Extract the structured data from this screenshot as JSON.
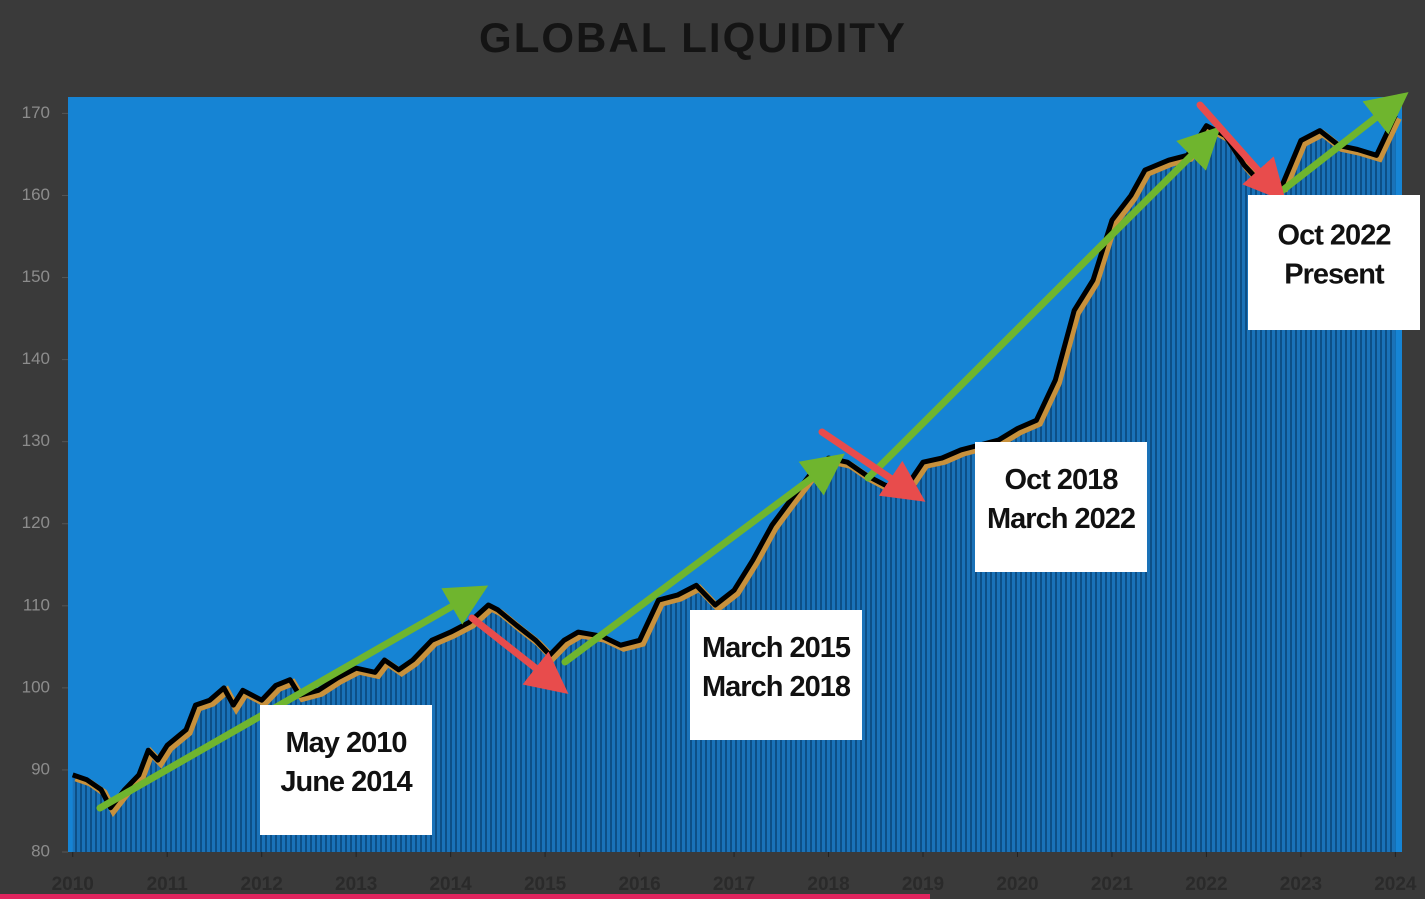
{
  "chart_data": {
    "type": "area_line",
    "title": "GLOBAL LIQUIDITY",
    "x": [
      2010.0,
      2010.15,
      2010.3,
      2010.4,
      2010.55,
      2010.7,
      2010.8,
      2010.9,
      2011.0,
      2011.2,
      2011.3,
      2011.45,
      2011.6,
      2011.7,
      2011.8,
      2012.0,
      2012.15,
      2012.3,
      2012.4,
      2012.6,
      2012.8,
      2013.0,
      2013.2,
      2013.3,
      2013.45,
      2013.6,
      2013.8,
      2014.0,
      2014.2,
      2014.4,
      2014.5,
      2014.7,
      2014.9,
      2015.05,
      2015.2,
      2015.35,
      2015.6,
      2015.8,
      2016.0,
      2016.2,
      2016.4,
      2016.6,
      2016.8,
      2017.0,
      2017.2,
      2017.4,
      2017.6,
      2017.8,
      2018.0,
      2018.2,
      2018.4,
      2018.6,
      2018.8,
      2019.0,
      2019.2,
      2019.4,
      2019.6,
      2019.8,
      2020.0,
      2020.2,
      2020.4,
      2020.6,
      2020.8,
      2021.0,
      2021.2,
      2021.35,
      2021.6,
      2021.8,
      2022.0,
      2022.2,
      2022.4,
      2022.6,
      2022.8,
      2023.0,
      2023.2,
      2023.4,
      2023.6,
      2023.8,
      2024.0
    ],
    "values": [
      89.4,
      88.8,
      87.6,
      85.4,
      87.6,
      89.4,
      92.4,
      91.2,
      93,
      94.9,
      97.9,
      98.5,
      100,
      97.9,
      99.7,
      98.5,
      100.3,
      101,
      99.1,
      99.7,
      101.2,
      102.4,
      101.9,
      103.4,
      102.2,
      103.4,
      105.8,
      106.8,
      108,
      110.1,
      109.5,
      107.6,
      105.8,
      104,
      105.8,
      106.8,
      106.3,
      105.2,
      105.8,
      110.7,
      111.3,
      112.5,
      110.1,
      111.9,
      115.6,
      119.8,
      122.9,
      125.9,
      128,
      127.5,
      125.9,
      124.7,
      124.1,
      127.5,
      128,
      129,
      129.6,
      130.2,
      131.6,
      132.6,
      137.5,
      146,
      149.7,
      157,
      160,
      163.1,
      164.3,
      164.9,
      168.5,
      167.3,
      163.7,
      161.2,
      161.2,
      166.7,
      167.9,
      166.1,
      165.6,
      164.9,
      169.8
    ],
    "xlim": [
      2009.95,
      2024.07
    ],
    "ylim": [
      80,
      172
    ],
    "xticks": [
      2010,
      2011,
      2012,
      2013,
      2014,
      2015,
      2016,
      2017,
      2018,
      2019,
      2020,
      2021,
      2022,
      2023,
      2024
    ],
    "yticks": [
      80,
      90,
      100,
      110,
      120,
      130,
      140,
      150,
      160,
      170
    ],
    "line_color": "#000000",
    "plot_color": "#1684d4",
    "annotations": [
      [
        "May 2010",
        "June 2014"
      ],
      [
        "March 2015",
        "March 2018"
      ],
      [
        "Oct 2018",
        "March 2022"
      ],
      [
        "Oct 2022",
        "Present"
      ]
    ]
  }
}
